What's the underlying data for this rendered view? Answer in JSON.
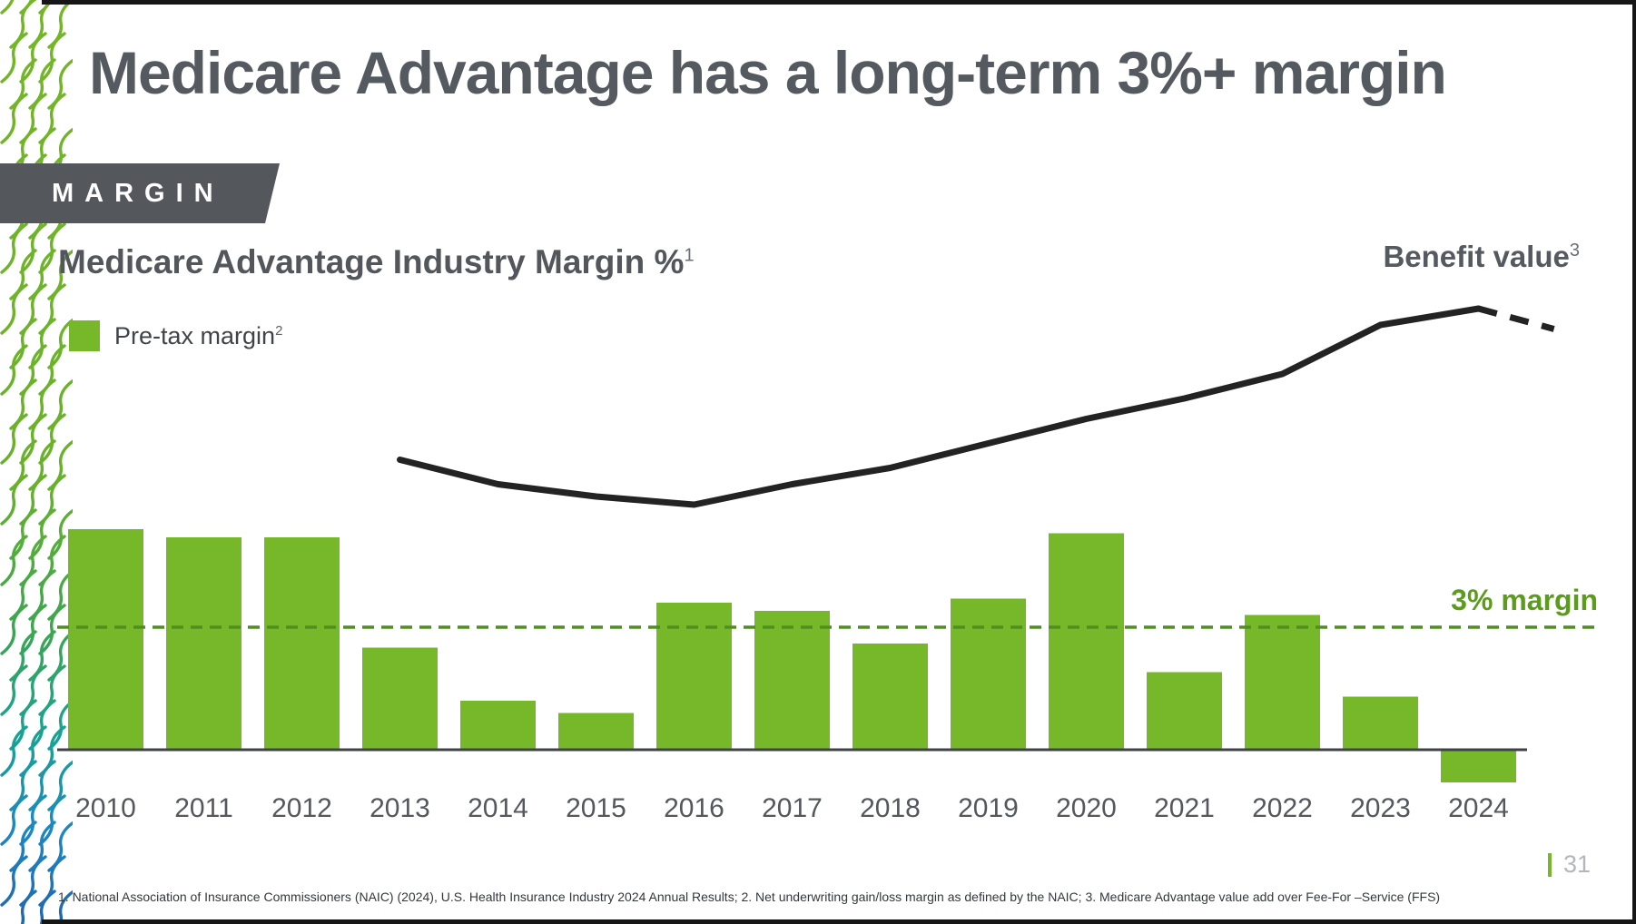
{
  "slide": {
    "title": "Medicare Advantage has a long-term 3%+ margin",
    "kicker": "MARGIN",
    "page_number": "31",
    "footnote": "1. National Association of Insurance Commissioners (NAIC) (2024), U.S. Health Insurance Industry 2024 Annual Results; 2. Net underwriting gain/loss margin as defined by the NAIC; 3. Medicare Advantage value add over Fee-For –Service (FFS)"
  },
  "chart": {
    "title": "Medicare Advantage Industry Margin %",
    "title_superscript": "1",
    "legend_label": "Pre-tax margin",
    "legend_superscript": "2",
    "line_label": "Benefit value",
    "line_label_superscript": "3",
    "threshold_label": "3% margin"
  },
  "chart_data": {
    "type": "bar+line",
    "unit": "%",
    "categories": [
      2010,
      2011,
      2012,
      2013,
      2014,
      2015,
      2016,
      2017,
      2018,
      2019,
      2020,
      2021,
      2022,
      2023,
      2024
    ],
    "series": [
      {
        "name": "Pre-tax margin",
        "type": "bar",
        "values": [
          5.4,
          5.2,
          5.2,
          2.5,
          1.2,
          0.9,
          3.6,
          3.4,
          2.6,
          3.7,
          5.3,
          1.9,
          3.3,
          1.3,
          -0.8
        ]
      },
      {
        "name": "Benefit value",
        "type": "line",
        "x": [
          2013,
          2014,
          2015,
          2016,
          2017,
          2018,
          2019,
          2020,
          2021,
          2022,
          2023,
          2024
        ],
        "values": [
          7.1,
          6.5,
          6.2,
          6.0,
          6.5,
          6.9,
          7.5,
          8.1,
          8.6,
          9.2,
          10.4,
          10.8
        ],
        "projection": {
          "x_to": 2024.77,
          "value_to": 10.3,
          "style": "dashed"
        }
      }
    ],
    "threshold": {
      "value": 3,
      "label": "3% margin"
    },
    "ylim": [
      -1,
      12
    ],
    "grid": false,
    "legend_position": "top-left",
    "x_axis_labels_shown": true,
    "y_axis_labels_shown": false
  },
  "colors": {
    "bar_green": "#76b82a",
    "threshold_green": "#4f8f1f",
    "threshold_text_green": "#5c9c1c",
    "line_black": "#232323",
    "axis_gray": "#3f4347",
    "title_gray": "#555a61",
    "badge_gray": "#54585c",
    "page_number_gray": "#b4b7ba",
    "wave_green_top": "#74b625",
    "wave_teal_mid": "#18a295",
    "wave_blue_bottom": "#2066ad"
  }
}
